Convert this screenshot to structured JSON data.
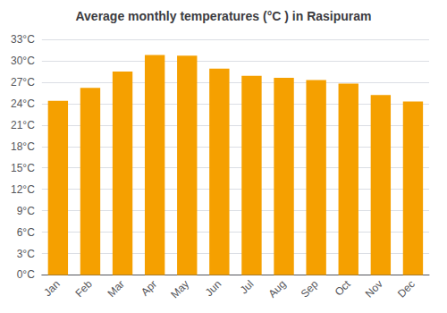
{
  "chart_data": {
    "type": "bar",
    "title": "Average monthly temperatures (°C ) in Rasipuram",
    "categories": [
      "Jan",
      "Feb",
      "Mar",
      "Apr",
      "May",
      "Jun",
      "Jul",
      "Aug",
      "Sep",
      "Oct",
      "Nov",
      "Dec"
    ],
    "values": [
      24.4,
      26.2,
      28.5,
      30.8,
      30.7,
      28.9,
      27.9,
      27.6,
      27.3,
      26.8,
      25.2,
      24.3
    ],
    "color": "#F5A000",
    "ylim": [
      0,
      33
    ],
    "yticks": [
      {
        "value": 0,
        "label": "0°C"
      },
      {
        "value": 3,
        "label": "3°C"
      },
      {
        "value": 6,
        "label": "6°C"
      },
      {
        "value": 9,
        "label": "9°C"
      },
      {
        "value": 12,
        "label": "12°C"
      },
      {
        "value": 15,
        "label": "15°C"
      },
      {
        "value": 18,
        "label": "18°C"
      },
      {
        "value": 21,
        "label": "21°C"
      },
      {
        "value": 24,
        "label": "24°C"
      },
      {
        "value": 27,
        "label": "27°C"
      },
      {
        "value": 30,
        "label": "30°C"
      },
      {
        "value": 33,
        "label": "33°C"
      }
    ],
    "grid": true
  }
}
